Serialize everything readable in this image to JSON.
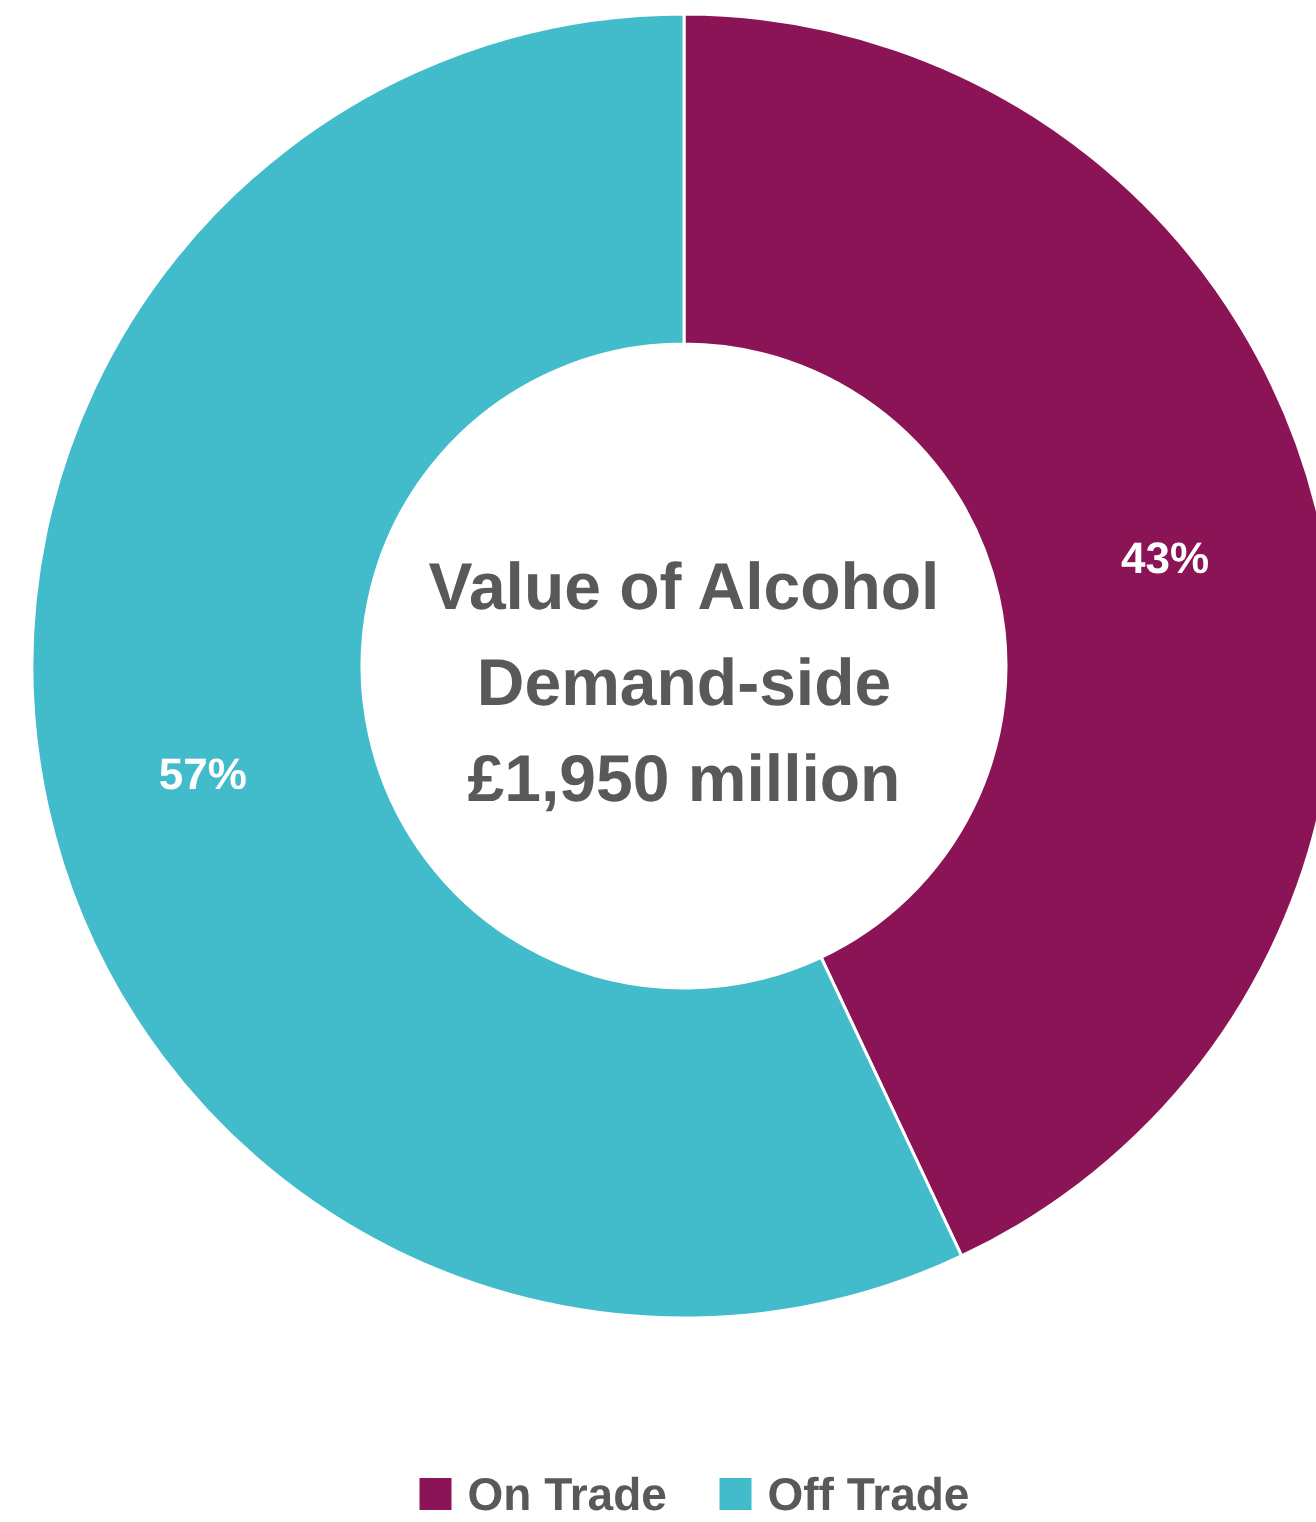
{
  "chart_data": {
    "type": "donut",
    "title": "Value of Alcohol\nDemand-side\n£1,950 million",
    "categories": [
      "On Trade",
      "Off Trade"
    ],
    "values": [
      43,
      57
    ],
    "colors": [
      "#8b1456",
      "#42bbcb"
    ],
    "value_labels": [
      "43%",
      "57%"
    ],
    "legend": "bottom"
  }
}
